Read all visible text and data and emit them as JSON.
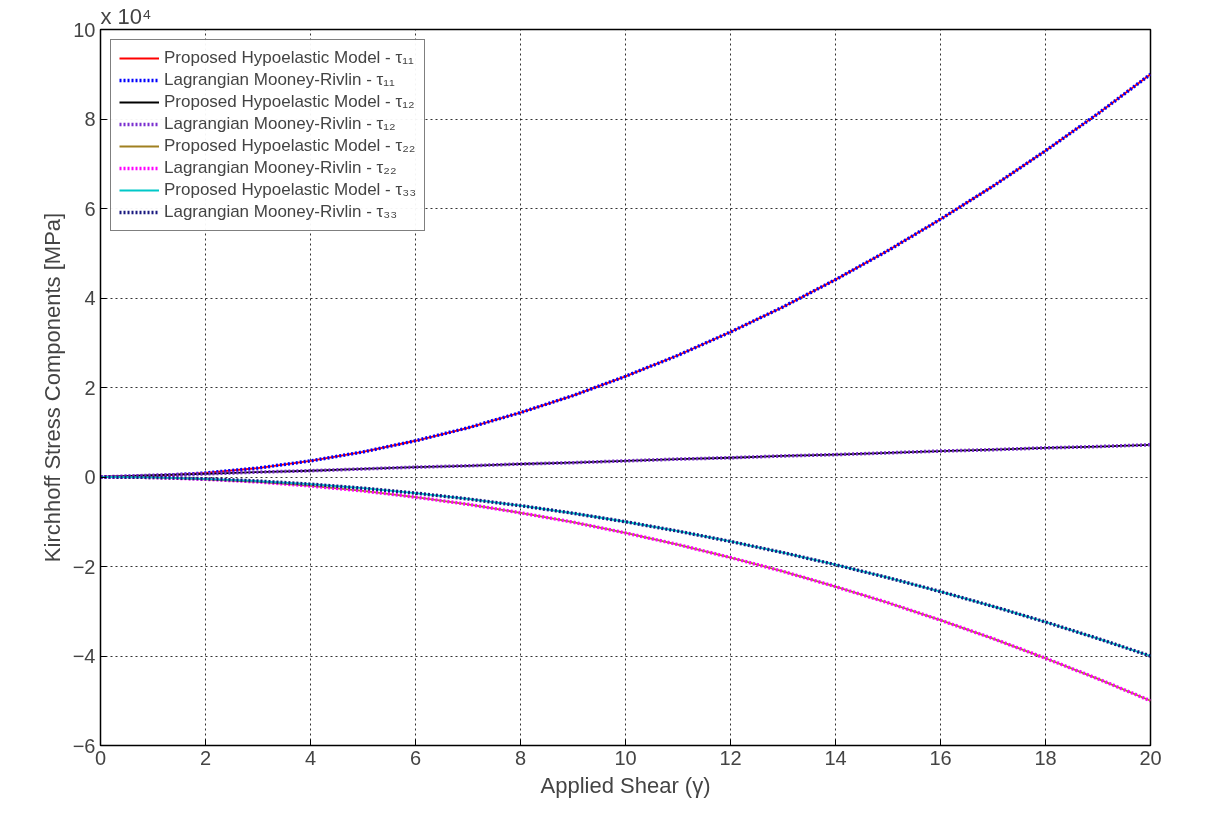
{
  "chart_data": {
    "type": "line",
    "xlabel": "Applied Shear (γ)",
    "ylabel": "Kirchhoff Stress Components [MPa]",
    "annotations": [
      "x 10⁴"
    ],
    "x": [
      0,
      1,
      2,
      3,
      4,
      5,
      6,
      7,
      8,
      9,
      10,
      11,
      12,
      13,
      14,
      15,
      16,
      17,
      18,
      19,
      20
    ],
    "xlim": [
      0,
      20
    ],
    "xticks": [
      0,
      2,
      4,
      6,
      8,
      10,
      12,
      14,
      16,
      18,
      20
    ],
    "ylim": [
      -6,
      10
    ],
    "yticks": [
      -6,
      -4,
      -2,
      0,
      2,
      4,
      6,
      8,
      10
    ],
    "grid": true,
    "legend": "top left",
    "marker": "none",
    "series": [
      {
        "name": "Proposed Hypoelastic Model - τ₁₁",
        "color": "#ff0000",
        "line_style": "solid",
        "values": [
          0,
          0.02,
          0.09,
          0.2,
          0.36,
          0.56,
          0.81,
          1.1,
          1.44,
          1.82,
          2.25,
          2.72,
          3.24,
          3.8,
          4.41,
          5.06,
          5.76,
          6.5,
          7.29,
          8.12,
          9.0
        ]
      },
      {
        "name": "Lagrangian Mooney-Rivlin - τ₁₁",
        "color": "#0000ff",
        "line_style": "dotted",
        "values": [
          0,
          0.02,
          0.09,
          0.2,
          0.36,
          0.56,
          0.81,
          1.1,
          1.44,
          1.82,
          2.25,
          2.72,
          3.24,
          3.8,
          4.41,
          5.06,
          5.76,
          6.5,
          7.29,
          8.12,
          9.0
        ]
      },
      {
        "name": "Proposed Hypoelastic Model - τ₁₂",
        "color": "#000000",
        "line_style": "solid",
        "values": [
          0,
          0.04,
          0.07,
          0.11,
          0.14,
          0.18,
          0.22,
          0.25,
          0.29,
          0.32,
          0.36,
          0.4,
          0.43,
          0.47,
          0.5,
          0.54,
          0.58,
          0.61,
          0.65,
          0.68,
          0.72
        ]
      },
      {
        "name": "Lagrangian Mooney-Rivlin - τ₁₂",
        "color": "#7a2fd0",
        "line_style": "dotted",
        "values": [
          0,
          0.04,
          0.07,
          0.11,
          0.14,
          0.18,
          0.22,
          0.25,
          0.29,
          0.32,
          0.36,
          0.4,
          0.43,
          0.47,
          0.5,
          0.54,
          0.58,
          0.61,
          0.65,
          0.68,
          0.72
        ]
      },
      {
        "name": "Proposed Hypoelastic Model - τ₂₂",
        "color": "#a08020",
        "line_style": "solid",
        "values": [
          0,
          -0.01,
          -0.05,
          -0.11,
          -0.2,
          -0.31,
          -0.45,
          -0.61,
          -0.8,
          -1.01,
          -1.25,
          -1.51,
          -1.8,
          -2.11,
          -2.45,
          -2.81,
          -3.2,
          -3.61,
          -4.05,
          -4.51,
          -5.0
        ]
      },
      {
        "name": "Lagrangian Mooney-Rivlin - τ₂₂",
        "color": "#ff00ff",
        "line_style": "dotted",
        "values": [
          0,
          -0.01,
          -0.05,
          -0.11,
          -0.2,
          -0.31,
          -0.45,
          -0.61,
          -0.8,
          -1.01,
          -1.25,
          -1.51,
          -1.8,
          -2.11,
          -2.45,
          -2.81,
          -3.2,
          -3.61,
          -4.05,
          -4.51,
          -5.0
        ]
      },
      {
        "name": "Proposed Hypoelastic Model - τ₃₃",
        "color": "#00c8c8",
        "line_style": "solid",
        "values": [
          0,
          -0.01,
          -0.04,
          -0.09,
          -0.16,
          -0.25,
          -0.36,
          -0.49,
          -0.64,
          -0.81,
          -1.0,
          -1.21,
          -1.44,
          -1.69,
          -1.96,
          -2.25,
          -2.56,
          -2.89,
          -3.24,
          -3.61,
          -4.0
        ]
      },
      {
        "name": "Lagrangian Mooney-Rivlin - τ₃₃",
        "color": "#1a1a80",
        "line_style": "dotted",
        "values": [
          0,
          -0.01,
          -0.04,
          -0.09,
          -0.16,
          -0.25,
          -0.36,
          -0.49,
          -0.64,
          -0.81,
          -1.0,
          -1.21,
          -1.44,
          -1.69,
          -1.96,
          -2.25,
          -2.56,
          -2.89,
          -3.24,
          -3.61,
          -4.0
        ]
      }
    ]
  }
}
